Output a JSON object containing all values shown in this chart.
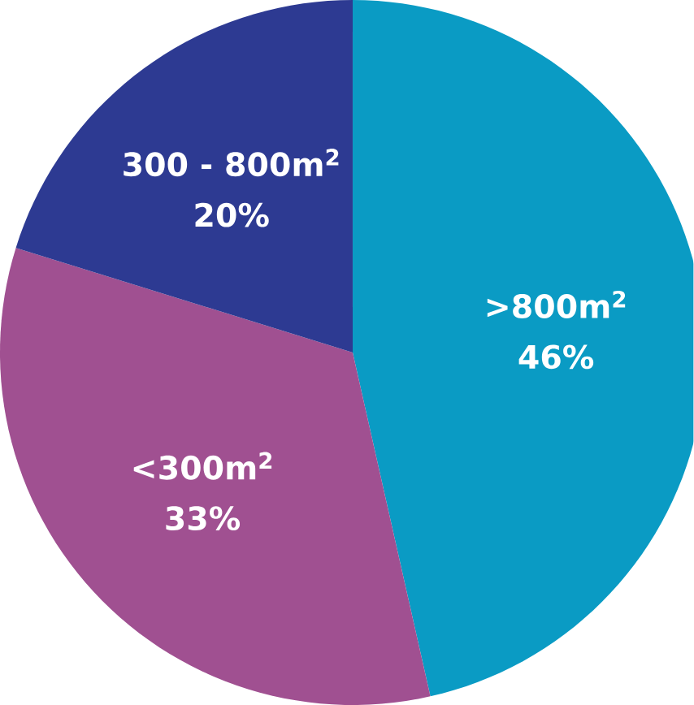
{
  "chart_data": {
    "type": "pie",
    "categories": [
      ">800m$^{2}$",
      "<300m$^{2}$",
      "300 - 800m$^{2}$"
    ],
    "values": [
      46,
      33,
      20
    ],
    "value_labels": [
      "46%",
      "33%",
      "20%"
    ],
    "colors": [
      "#0a9bc4",
      "#a05091",
      "#2d3a92"
    ]
  }
}
